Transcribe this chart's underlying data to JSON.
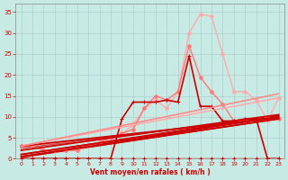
{
  "title": "",
  "xlabel": "Vent moyen/en rafales ( km/h )",
  "ylabel": "",
  "xlim": [
    -0.5,
    23.5
  ],
  "ylim": [
    0,
    37
  ],
  "yticks": [
    0,
    5,
    10,
    15,
    20,
    25,
    30,
    35
  ],
  "xticks": [
    0,
    1,
    2,
    3,
    4,
    5,
    6,
    7,
    8,
    9,
    10,
    11,
    12,
    13,
    14,
    15,
    16,
    17,
    18,
    19,
    20,
    21,
    22,
    23
  ],
  "background_color": "#c8eae4",
  "grid_color": "#aacccc",
  "lines": [
    {
      "x": [
        0,
        1,
        2,
        3,
        4,
        5,
        6,
        7,
        8,
        9,
        10,
        11,
        12,
        13,
        14,
        15,
        16,
        17,
        18,
        19,
        20,
        21,
        22,
        23
      ],
      "y": [
        0,
        0,
        0,
        0,
        0,
        0,
        0,
        0,
        0,
        0,
        0,
        0,
        0,
        0,
        0,
        0,
        0,
        0,
        0,
        0,
        0,
        0,
        0,
        0
      ],
      "color": "#cc0000",
      "lw": 1.0,
      "marker": "+"
    },
    {
      "x": [
        0,
        1,
        2,
        3,
        4,
        5,
        6,
        7,
        8,
        9,
        10,
        11,
        12,
        13,
        14,
        15,
        16,
        17,
        18,
        19,
        20,
        21,
        22,
        23
      ],
      "y": [
        3,
        3,
        2,
        2,
        2,
        2,
        3,
        4,
        5,
        6,
        8,
        12,
        14,
        12,
        16,
        30,
        34.5,
        34,
        25,
        16,
        16,
        14,
        9,
        14.5
      ],
      "color": "#ffaaaa",
      "lw": 1.0,
      "marker": "o",
      "markersize": 2.5
    },
    {
      "x": [
        0,
        1,
        2,
        3,
        4,
        5,
        6,
        7,
        8,
        9,
        10,
        11,
        12,
        13,
        14,
        15,
        16,
        17,
        18,
        19,
        20,
        21,
        22,
        23
      ],
      "y": [
        3,
        3,
        2,
        2,
        2,
        2,
        3,
        4,
        5,
        6,
        7,
        12,
        15,
        14,
        16,
        27,
        19.5,
        16,
        13,
        9,
        9,
        9,
        9.5,
        9.5
      ],
      "color": "#ff7777",
      "lw": 1.0,
      "marker": "o",
      "markersize": 2.5
    },
    {
      "x": [
        0,
        1,
        2,
        3,
        4,
        5,
        6,
        7,
        8,
        9,
        10,
        11,
        12,
        13,
        14,
        15,
        16,
        17,
        18,
        19,
        20,
        21,
        22,
        23
      ],
      "y": [
        0,
        0,
        0,
        0,
        0,
        0,
        0,
        0,
        0,
        9.5,
        13.5,
        13.5,
        13.5,
        14,
        13.5,
        24.5,
        12.5,
        12.5,
        9,
        9,
        9.5,
        9.5,
        0,
        0
      ],
      "color": "#cc0000",
      "lw": 1.2,
      "marker": "+",
      "markersize": 3.0
    },
    {
      "x": [
        0,
        23
      ],
      "y": [
        0.5,
        9.5
      ],
      "color": "#cc0000",
      "lw": 1.3,
      "marker": null
    },
    {
      "x": [
        0,
        23
      ],
      "y": [
        1.0,
        10.0
      ],
      "color": "#cc0000",
      "lw": 1.3,
      "marker": null
    },
    {
      "x": [
        0,
        23
      ],
      "y": [
        2.0,
        10.5
      ],
      "color": "#cc0000",
      "lw": 1.3,
      "marker": null
    },
    {
      "x": [
        0,
        23
      ],
      "y": [
        3.0,
        9.8
      ],
      "color": "#cc0000",
      "lw": 1.3,
      "marker": null
    },
    {
      "x": [
        0,
        23
      ],
      "y": [
        3.0,
        14.5
      ],
      "color": "#ffaaaa",
      "lw": 1.0,
      "marker": null
    },
    {
      "x": [
        0,
        23
      ],
      "y": [
        3.0,
        15.5
      ],
      "color": "#ff8888",
      "lw": 1.0,
      "marker": null
    }
  ]
}
